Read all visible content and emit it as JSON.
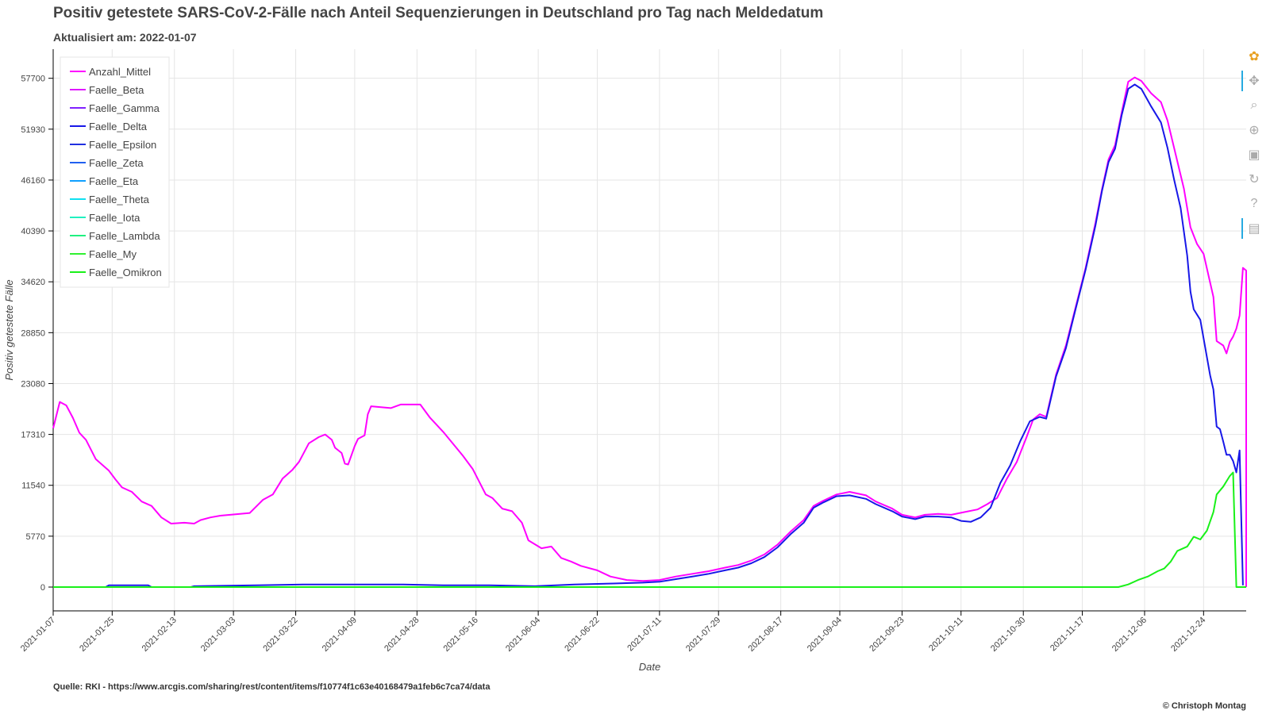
{
  "header": {
    "title": "Positiv getestete SARS-CoV-2-Fälle nach Anteil Sequenzierungen in Deutschland pro Tag nach Meldedatum",
    "subtitle": "Aktualisiert am: 2022-01-07"
  },
  "footer": {
    "source": "Quelle: RKI - https://www.arcgis.com/sharing/rest/content/items/f10774f1c63e40168479a1feb6c7ca74/data",
    "copyright": "© Christoph Montag"
  },
  "toolbar": {
    "tools": [
      {
        "name": "bokeh-logo-icon",
        "glyph": "✿",
        "active": false
      },
      {
        "name": "pan-tool-icon",
        "glyph": "✥",
        "active": true
      },
      {
        "name": "box-zoom-tool-icon",
        "glyph": "⌕",
        "active": false
      },
      {
        "name": "wheel-zoom-tool-icon",
        "glyph": "⊕",
        "active": false
      },
      {
        "name": "save-tool-icon",
        "glyph": "▣",
        "active": false
      },
      {
        "name": "reset-tool-icon",
        "glyph": "↻",
        "active": false
      },
      {
        "name": "help-tool-icon",
        "glyph": "?",
        "active": false
      },
      {
        "name": "hover-tool-icon",
        "glyph": "▤",
        "active": true
      }
    ]
  },
  "chart_data": {
    "type": "line",
    "xlabel": "Date",
    "ylabel": "Positiv getestete Fälle",
    "xlim": [
      "2021-01-07",
      "2022-01-06"
    ],
    "ylim": [
      -2700,
      61000
    ],
    "yticks": [
      0,
      5770,
      11540,
      17310,
      23080,
      28850,
      34620,
      40390,
      46160,
      51930,
      57700
    ],
    "xticks": [
      "2021-01-07",
      "2021-01-25",
      "2021-02-13",
      "2021-03-03",
      "2021-03-22",
      "2021-04-09",
      "2021-04-28",
      "2021-05-16",
      "2021-06-04",
      "2021-06-22",
      "2021-07-11",
      "2021-07-29",
      "2021-08-17",
      "2021-09-04",
      "2021-09-23",
      "2021-10-11",
      "2021-10-30",
      "2021-11-17",
      "2021-12-06",
      "2021-12-24"
    ],
    "grid": true,
    "legend_position": "top-left",
    "series": [
      {
        "name": "Anzahl_Mittel",
        "color": "#ff00ff",
        "points": [
          [
            "2021-01-07",
            18000
          ],
          [
            "2021-01-09",
            21000
          ],
          [
            "2021-01-11",
            20600
          ],
          [
            "2021-01-13",
            19200
          ],
          [
            "2021-01-15",
            17500
          ],
          [
            "2021-01-17",
            16700
          ],
          [
            "2021-01-20",
            14500
          ],
          [
            "2021-01-24",
            13200
          ],
          [
            "2021-01-26",
            12200
          ],
          [
            "2021-01-28",
            11300
          ],
          [
            "2021-01-31",
            10800
          ],
          [
            "2021-02-03",
            9700
          ],
          [
            "2021-02-06",
            9200
          ],
          [
            "2021-02-09",
            7900
          ],
          [
            "2021-02-12",
            7200
          ],
          [
            "2021-02-16",
            7300
          ],
          [
            "2021-02-19",
            7200
          ],
          [
            "2021-02-21",
            7600
          ],
          [
            "2021-02-24",
            7900
          ],
          [
            "2021-02-27",
            8100
          ],
          [
            "2021-03-02",
            8200
          ],
          [
            "2021-03-08",
            8400
          ],
          [
            "2021-03-12",
            9900
          ],
          [
            "2021-03-15",
            10500
          ],
          [
            "2021-03-18",
            12300
          ],
          [
            "2021-03-21",
            13300
          ],
          [
            "2021-03-23",
            14200
          ],
          [
            "2021-03-26",
            16300
          ],
          [
            "2021-03-29",
            17000
          ],
          [
            "2021-03-31",
            17300
          ],
          [
            "2021-04-02",
            16700
          ],
          [
            "2021-04-03",
            15800
          ],
          [
            "2021-04-05",
            15200
          ],
          [
            "2021-04-06",
            14000
          ],
          [
            "2021-04-07",
            13900
          ],
          [
            "2021-04-09",
            16000
          ],
          [
            "2021-04-10",
            16800
          ],
          [
            "2021-04-12",
            17200
          ],
          [
            "2021-04-13",
            19600
          ],
          [
            "2021-04-14",
            20500
          ],
          [
            "2021-04-20",
            20300
          ],
          [
            "2021-04-23",
            20700
          ],
          [
            "2021-04-29",
            20700
          ],
          [
            "2021-05-02",
            19200
          ],
          [
            "2021-05-06",
            17600
          ],
          [
            "2021-05-12",
            14900
          ],
          [
            "2021-05-15",
            13400
          ],
          [
            "2021-05-19",
            10500
          ],
          [
            "2021-05-21",
            10100
          ],
          [
            "2021-05-24",
            8900
          ],
          [
            "2021-05-27",
            8600
          ],
          [
            "2021-05-30",
            7300
          ],
          [
            "2021-06-01",
            5300
          ],
          [
            "2021-06-05",
            4400
          ],
          [
            "2021-06-08",
            4600
          ],
          [
            "2021-06-11",
            3300
          ],
          [
            "2021-06-14",
            2900
          ],
          [
            "2021-06-17",
            2400
          ],
          [
            "2021-06-22",
            1900
          ],
          [
            "2021-06-26",
            1200
          ],
          [
            "2021-07-01",
            800
          ],
          [
            "2021-07-06",
            700
          ],
          [
            "2021-07-11",
            800
          ],
          [
            "2021-07-16",
            1200
          ],
          [
            "2021-07-21",
            1500
          ],
          [
            "2021-07-26",
            1800
          ],
          [
            "2021-07-31",
            2200
          ],
          [
            "2021-08-04",
            2500
          ],
          [
            "2021-08-08",
            3000
          ],
          [
            "2021-08-12",
            3700
          ],
          [
            "2021-08-16",
            4800
          ],
          [
            "2021-08-20",
            6300
          ],
          [
            "2021-08-24",
            7600
          ],
          [
            "2021-08-27",
            9200
          ],
          [
            "2021-08-30",
            9800
          ],
          [
            "2021-09-03",
            10500
          ],
          [
            "2021-09-07",
            10800
          ],
          [
            "2021-09-12",
            10400
          ],
          [
            "2021-09-15",
            9700
          ],
          [
            "2021-09-20",
            8900
          ],
          [
            "2021-09-23",
            8200
          ],
          [
            "2021-09-27",
            7900
          ],
          [
            "2021-09-30",
            8200
          ],
          [
            "2021-10-04",
            8300
          ],
          [
            "2021-10-08",
            8200
          ],
          [
            "2021-10-12",
            8500
          ],
          [
            "2021-10-16",
            8800
          ],
          [
            "2021-10-19",
            9400
          ],
          [
            "2021-10-22",
            10100
          ],
          [
            "2021-10-25",
            12300
          ],
          [
            "2021-10-28",
            14200
          ],
          [
            "2021-10-31",
            17000
          ],
          [
            "2021-11-02",
            19000
          ],
          [
            "2021-11-04",
            19600
          ],
          [
            "2021-11-06",
            19300
          ],
          [
            "2021-11-09",
            24100
          ],
          [
            "2021-11-12",
            27400
          ],
          [
            "2021-11-15",
            31800
          ],
          [
            "2021-11-18",
            36200
          ],
          [
            "2021-11-21",
            41300
          ],
          [
            "2021-11-23",
            45100
          ],
          [
            "2021-11-25",
            48500
          ],
          [
            "2021-11-27",
            50100
          ],
          [
            "2021-11-29",
            53800
          ],
          [
            "2021-12-01",
            57300
          ],
          [
            "2021-12-03",
            57800
          ],
          [
            "2021-12-05",
            57400
          ],
          [
            "2021-12-08",
            56000
          ],
          [
            "2021-12-11",
            55000
          ],
          [
            "2021-12-13",
            52900
          ],
          [
            "2021-12-15",
            49800
          ],
          [
            "2021-12-18",
            45200
          ],
          [
            "2021-12-20",
            40800
          ],
          [
            "2021-12-22",
            38900
          ],
          [
            "2021-12-24",
            37800
          ],
          [
            "2021-12-27",
            32900
          ],
          [
            "2021-12-28",
            27900
          ],
          [
            "2021-12-30",
            27400
          ],
          [
            "2021-12-31",
            26500
          ],
          [
            "2022-01-01",
            27800
          ],
          [
            "2022-01-02",
            28400
          ],
          [
            "2022-01-03",
            29300
          ],
          [
            "2022-01-04",
            30800
          ],
          [
            "2022-01-05",
            36200
          ],
          [
            "2022-01-06",
            35900
          ],
          [
            "2022-01-06",
            0
          ]
        ]
      },
      {
        "name": "Faelle_Beta",
        "color": "#e018ff",
        "points": []
      },
      {
        "name": "Faelle_Gamma",
        "color": "#8020ff",
        "points": []
      },
      {
        "name": "Faelle_Delta",
        "color": "#1818e8",
        "points": [
          [
            "2021-01-07",
            0
          ],
          [
            "2021-01-23",
            0
          ],
          [
            "2021-01-24",
            200
          ],
          [
            "2021-02-05",
            200
          ],
          [
            "2021-02-06",
            0
          ],
          [
            "2021-02-18",
            0
          ],
          [
            "2021-02-19",
            100
          ],
          [
            "2021-03-10",
            200
          ],
          [
            "2021-03-25",
            300
          ],
          [
            "2021-04-08",
            300
          ],
          [
            "2021-04-23",
            300
          ],
          [
            "2021-05-06",
            200
          ],
          [
            "2021-05-20",
            200
          ],
          [
            "2021-06-03",
            100
          ],
          [
            "2021-06-15",
            300
          ],
          [
            "2021-06-27",
            400
          ],
          [
            "2021-07-06",
            500
          ],
          [
            "2021-07-11",
            600
          ],
          [
            "2021-07-16",
            900
          ],
          [
            "2021-07-21",
            1200
          ],
          [
            "2021-07-26",
            1500
          ],
          [
            "2021-07-31",
            1900
          ],
          [
            "2021-08-04",
            2200
          ],
          [
            "2021-08-08",
            2700
          ],
          [
            "2021-08-12",
            3400
          ],
          [
            "2021-08-16",
            4500
          ],
          [
            "2021-08-20",
            6000
          ],
          [
            "2021-08-24",
            7300
          ],
          [
            "2021-08-27",
            9000
          ],
          [
            "2021-08-30",
            9600
          ],
          [
            "2021-09-03",
            10300
          ],
          [
            "2021-09-07",
            10400
          ],
          [
            "2021-09-12",
            10000
          ],
          [
            "2021-09-15",
            9400
          ],
          [
            "2021-09-20",
            8600
          ],
          [
            "2021-09-23",
            8000
          ],
          [
            "2021-09-27",
            7700
          ],
          [
            "2021-09-30",
            8000
          ],
          [
            "2021-10-04",
            8000
          ],
          [
            "2021-10-08",
            7900
          ],
          [
            "2021-10-11",
            7500
          ],
          [
            "2021-10-14",
            7400
          ],
          [
            "2021-10-17",
            7900
          ],
          [
            "2021-10-20",
            9000
          ],
          [
            "2021-10-23",
            11800
          ],
          [
            "2021-10-26",
            13800
          ],
          [
            "2021-10-29",
            16500
          ],
          [
            "2021-11-01",
            18800
          ],
          [
            "2021-11-04",
            19300
          ],
          [
            "2021-11-06",
            19100
          ],
          [
            "2021-11-09",
            23900
          ],
          [
            "2021-11-12",
            27100
          ],
          [
            "2021-11-15",
            31600
          ],
          [
            "2021-11-18",
            36000
          ],
          [
            "2021-11-21",
            41000
          ],
          [
            "2021-11-23",
            44900
          ],
          [
            "2021-11-25",
            48200
          ],
          [
            "2021-11-27",
            49700
          ],
          [
            "2021-11-29",
            53500
          ],
          [
            "2021-12-01",
            56500
          ],
          [
            "2021-12-03",
            57000
          ],
          [
            "2021-12-05",
            56500
          ],
          [
            "2021-12-08",
            54500
          ],
          [
            "2021-12-11",
            52700
          ],
          [
            "2021-12-13",
            49800
          ],
          [
            "2021-12-15",
            46200
          ],
          [
            "2021-12-17",
            43000
          ],
          [
            "2021-12-19",
            37600
          ],
          [
            "2021-12-20",
            33500
          ],
          [
            "2021-12-21",
            31500
          ],
          [
            "2021-12-23",
            30300
          ],
          [
            "2021-12-26",
            24000
          ],
          [
            "2021-12-27",
            22400
          ],
          [
            "2021-12-28",
            18200
          ],
          [
            "2021-12-29",
            17900
          ],
          [
            "2021-12-30",
            16500
          ],
          [
            "2021-12-31",
            15000
          ],
          [
            "2022-01-01",
            15000
          ],
          [
            "2022-01-02",
            14300
          ],
          [
            "2022-01-03",
            13000
          ],
          [
            "2022-01-04",
            15500
          ],
          [
            "2022-01-05",
            200
          ]
        ]
      },
      {
        "name": "Faelle_Epsilon",
        "color": "#2030e0",
        "points": []
      },
      {
        "name": "Faelle_Zeta",
        "color": "#2060f0",
        "points": []
      },
      {
        "name": "Faelle_Eta",
        "color": "#10a0ff",
        "points": []
      },
      {
        "name": "Faelle_Theta",
        "color": "#10e0f0",
        "points": []
      },
      {
        "name": "Faelle_Iota",
        "color": "#20f0c0",
        "points": []
      },
      {
        "name": "Faelle_Lambda",
        "color": "#20f080",
        "points": []
      },
      {
        "name": "Faelle_My",
        "color": "#30f030",
        "points": []
      },
      {
        "name": "Faelle_Omikron",
        "color": "#19f019",
        "points": [
          [
            "2021-01-07",
            0
          ],
          [
            "2021-11-28",
            0
          ],
          [
            "2021-12-01",
            300
          ],
          [
            "2021-12-04",
            800
          ],
          [
            "2021-12-07",
            1200
          ],
          [
            "2021-12-10",
            1800
          ],
          [
            "2021-12-12",
            2100
          ],
          [
            "2021-12-14",
            2900
          ],
          [
            "2021-12-16",
            4100
          ],
          [
            "2021-12-19",
            4600
          ],
          [
            "2021-12-21",
            5700
          ],
          [
            "2021-12-23",
            5400
          ],
          [
            "2021-12-25",
            6400
          ],
          [
            "2021-12-27",
            8500
          ],
          [
            "2021-12-28",
            10500
          ],
          [
            "2021-12-30",
            11400
          ],
          [
            "2022-01-01",
            12600
          ],
          [
            "2022-01-02",
            13000
          ],
          [
            "2022-01-03",
            0
          ],
          [
            "2022-01-06",
            0
          ]
        ]
      }
    ]
  }
}
